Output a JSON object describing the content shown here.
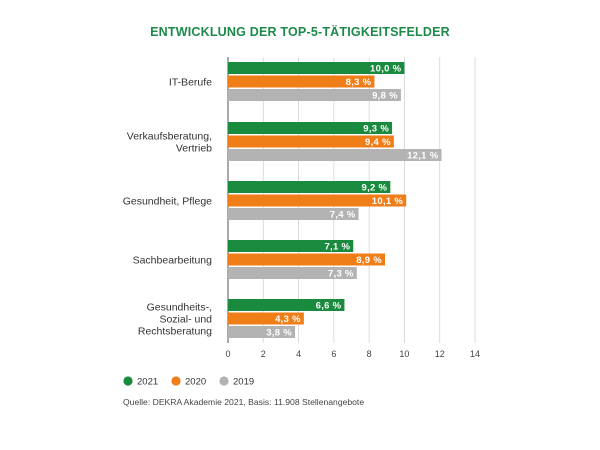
{
  "chart_data": {
    "type": "bar",
    "orientation": "horizontal",
    "title": "ENTWICKLUNG DER TOP-5-TÄTIGKEITSFELDER",
    "categories": [
      [
        "IT-Berufe"
      ],
      [
        "Verkaufsberatung,",
        "Vertrieb"
      ],
      [
        "Gesundheit, Pflege"
      ],
      [
        "Sachbearbeitung"
      ],
      [
        "Gesundheits-,",
        "Sozial- und",
        "Rechtsberatung"
      ]
    ],
    "series": [
      {
        "name": "2021",
        "color": "#1a8a3f",
        "values": [
          10.0,
          9.3,
          9.2,
          7.1,
          6.6
        ],
        "labels": [
          "10,0 %",
          "9,3 %",
          "9,2 %",
          "7,1 %",
          "6,6 %"
        ]
      },
      {
        "name": "2020",
        "color": "#ef7d18",
        "values": [
          8.3,
          9.4,
          10.1,
          8.9,
          4.3
        ],
        "labels": [
          "8,3 %",
          "9,4 %",
          "10,1 %",
          "8,9 %",
          "4,3 %"
        ]
      },
      {
        "name": "2019",
        "color": "#b3b3b3",
        "values": [
          9.8,
          12.1,
          7.4,
          7.3,
          3.8
        ],
        "labels": [
          "9,8 %",
          "12,1 %",
          "7,4 %",
          "7,3 %",
          "3,8 %"
        ]
      }
    ],
    "xlim": [
      0,
      14
    ],
    "xticks": [
      0,
      2,
      4,
      6,
      8,
      10,
      12,
      14
    ],
    "grid": true,
    "legend_position": "bottom-left",
    "source": "Quelle: DEKRA Akademie 2021, Basis: 11.908 Stellenangebote"
  }
}
